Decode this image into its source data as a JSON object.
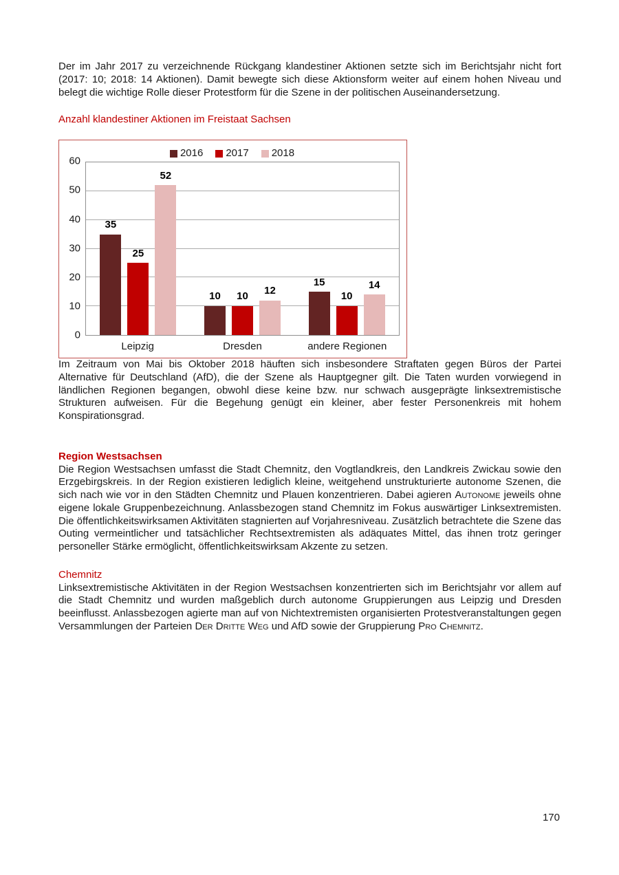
{
  "page": {
    "number": "170"
  },
  "headings": {
    "chart_caption": "Anzahl klandestiner Aktionen im Freistaat Sachsen",
    "region": "Region Westsachsen",
    "chemnitz": "Chemnitz"
  },
  "paragraphs": {
    "intro": "Der im Jahr 2017 zu verzeichnende Rückgang klandestiner Aktionen setzte sich im Berichtsjahr nicht fort (2017: 10; 2018: 14 Aktionen). Damit bewegte sich diese Aktionsform weiter auf einem hohen Niveau und belegt die wichtige Rolle dieser Protestform für die Szene in der politischen Auseinandersetzung.",
    "afd": "Im Zeitraum von Mai bis Oktober 2018 häuften sich insbesondere Straftaten gegen Büros der Par­tei Alternative für Deutschland (AfD), die der Szene als Hauptgegner gilt. Die Taten wurden vor­wiegend in ländlichen Regionen begangen, obwohl diese keine bzw. nur schwach ausgeprägte linksextremistische Strukturen aufweisen. Für die Begehung genügt ein kleiner, aber fester Perso­nenkreis mit hohem Konspirationsgrad.",
    "region_segments": [
      {
        "text": "Die Region Westsachsen umfasst die Stadt Chemnitz, den Vogtlandkreis, den Landkreis Zwickau sowie den Erzgebirgskreis. In der Region existieren lediglich kleine, weitgehend unstrukturierte autonome Szenen, die sich nach wie vor in den Städten Chemnitz und Plauen konzentrieren. Da­bei agieren "
      },
      {
        "text": "Autonome",
        "smallcaps": true
      },
      {
        "text": " jeweils ohne eigene lokale Gruppenbezeichnung. Anlassbezogen stand Chemnitz im Fokus auswärtiger Linksextremisten. Die öffentlichkeitswirksamen Aktivitäten stag­nierten auf Vorjahresniveau. Zusätzlich betrachtete die Szene das Outing vermeintlicher und tat­sächlicher Rechtsextremisten als adäquates Mittel, das ihnen trotz geringer personeller Stärke ermöglicht, öffentlichkeitswirksam Akzente zu setzen."
      }
    ],
    "chemnitz_segments": [
      {
        "text": "Linksextremistische Aktivitäten in der Region Westsachsen konzentrierten sich im Berichtsjahr vor allem auf die Stadt Chemnitz und wurden maßgeblich durch autonome Gruppierungen aus Leipzig und Dresden beeinflusst. Anlassbezogen agierte man auf von Nichtextremisten organisierten Pro­testveranstaltungen gegen Versammlungen der Parteien "
      },
      {
        "text": "Der Dritte Weg",
        "smallcaps": true
      },
      {
        "text": " und AfD sowie der Gruppierung "
      },
      {
        "text": "Pro Chemnitz",
        "smallcaps": true
      },
      {
        "text": "."
      }
    ]
  },
  "chart_data": {
    "type": "bar",
    "title": "Anzahl klandestiner Aktionen im Freistaat Sachsen",
    "categories": [
      "Leipzig",
      "Dresden",
      "andere Regionen"
    ],
    "series": [
      {
        "name": "2016",
        "color": "#632423",
        "values": [
          35,
          10,
          15
        ]
      },
      {
        "name": "2017",
        "color": "#C00000",
        "values": [
          25,
          10,
          10
        ]
      },
      {
        "name": "2018",
        "color": "#E6B9B8",
        "values": [
          52,
          12,
          14
        ]
      }
    ],
    "ylim": [
      0,
      60
    ],
    "yticks": [
      0,
      10,
      20,
      30,
      40,
      50,
      60
    ],
    "grid": true,
    "legend_position": "top",
    "frame_color": "#C0504D",
    "gridline_color": "#ABABAB"
  },
  "colors": {
    "heading_red": "#C00000",
    "body_text": "#1a1a1a"
  }
}
